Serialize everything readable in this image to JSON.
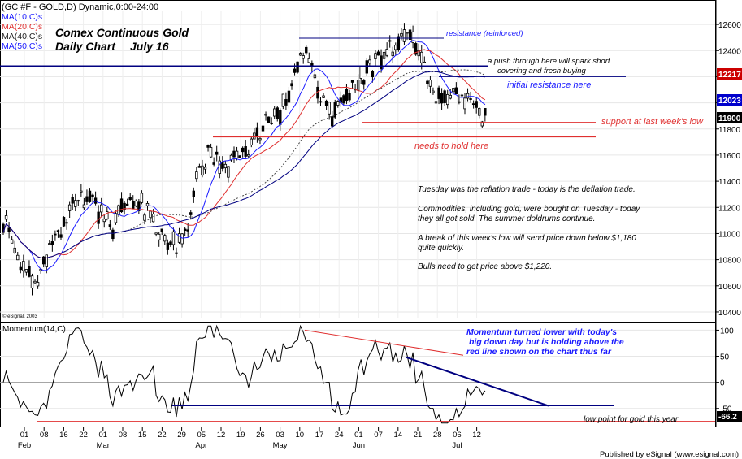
{
  "header": {
    "symbol_line": "(GC #F - GOLD,D) Dynamic,0:00-24:00",
    "ma_labels": [
      {
        "text": "MA(10,C)s",
        "color": "#1a1aff"
      },
      {
        "text": "MA(20,C)s",
        "color": "#e03030"
      },
      {
        "text": "MA(40,C)s",
        "color": "#222222"
      },
      {
        "text": "MA(50,C)s",
        "color": "#1a1aff"
      }
    ],
    "title_line1": "Comex Continuous Gold",
    "title_line2": "Daily Chart",
    "title_date": "July 16",
    "copyright": "© eSignal, 2003"
  },
  "annotations": {
    "resistance_reinforced": "resistance (reinforced)",
    "push_note_1": "a push through here will spark short",
    "push_note_2": "covering and fresh buying",
    "initial_resistance": "initial resistance here",
    "support": "support at last week's low",
    "needs_to_hold": "needs to hold here",
    "comment_1": "Tuesday was the reflation trade - today is the deflation trade.",
    "comment_2a": "Commodities, including gold, were bought on Tuesday - today",
    "comment_2b": "they all got sold. The summer doldrums continue.",
    "comment_3a": "A break of this week's low will send price down below $1,180",
    "comment_3b": "quite quickly.",
    "comment_4": "Bulls need to get price above $1,220.",
    "momentum_note_1": "Momentum turned lower with today's",
    "momentum_note_2": "big down day but is holding above the",
    "momentum_note_3": "red line shown on the chart thus far",
    "low_point": "low point for gold this year"
  },
  "price_axis": {
    "ticks": [
      "12600",
      "12400",
      "12200",
      "12000",
      "11800",
      "11600",
      "11400",
      "11200",
      "11000",
      "10800",
      "10600",
      "10400"
    ],
    "tick_values": [
      12600,
      12400,
      12200,
      12000,
      11800,
      11600,
      11400,
      11200,
      11000,
      10800,
      10600,
      10400
    ],
    "marker_high": "12217",
    "marker_mid": "12023",
    "marker_last": "11900"
  },
  "momentum": {
    "label": "Momentum(14,C)",
    "ticks": [
      "100",
      "50",
      "0",
      "-50"
    ],
    "tick_values": [
      100,
      50,
      0,
      -50
    ],
    "last_value": "-66.2"
  },
  "time_axis": {
    "days": [
      "01",
      "08",
      "16",
      "22",
      "01",
      "08",
      "15",
      "22",
      "29",
      "05",
      "12",
      "19",
      "26",
      "03",
      "10",
      "17",
      "24",
      "01",
      "07",
      "14",
      "21",
      "28",
      "06",
      "12"
    ],
    "months": [
      {
        "label": "Feb",
        "day_index": 0
      },
      {
        "label": "Mar",
        "day_index": 4
      },
      {
        "label": "Apr",
        "day_index": 9
      },
      {
        "label": "May",
        "day_index": 13
      },
      {
        "label": "Jun",
        "day_index": 17
      },
      {
        "label": "Jul",
        "day_index": 22
      }
    ]
  },
  "footer": "Published by eSignal (www.esignal.com)",
  "colors": {
    "blue": "#1a1aff",
    "red": "#e03030",
    "navy": "#000080",
    "marker_red": "#cc0000",
    "marker_blue": "#0000cc"
  },
  "chart_data": {
    "type": "candlestick",
    "price_scale": "cents per ounce",
    "ylim": [
      10350,
      12700
    ],
    "levels": {
      "resistance_reinforced": 12495,
      "initial_resistance": 12200,
      "upper_blue_line": 12280,
      "support_last_week_low": 11850,
      "needs_to_hold": 11740
    },
    "last": {
      "ma_high": 12217,
      "ma_mid": 12023,
      "close": 11900
    },
    "momentum_ylim": [
      -80,
      110
    ],
    "momentum_levels": {
      "blue_line": -45,
      "low_line": -75
    },
    "momentum_last": -66.2,
    "approx_range": {
      "start": "Feb 01",
      "end": "Jul 16",
      "low": 10450,
      "high": 12660
    }
  }
}
